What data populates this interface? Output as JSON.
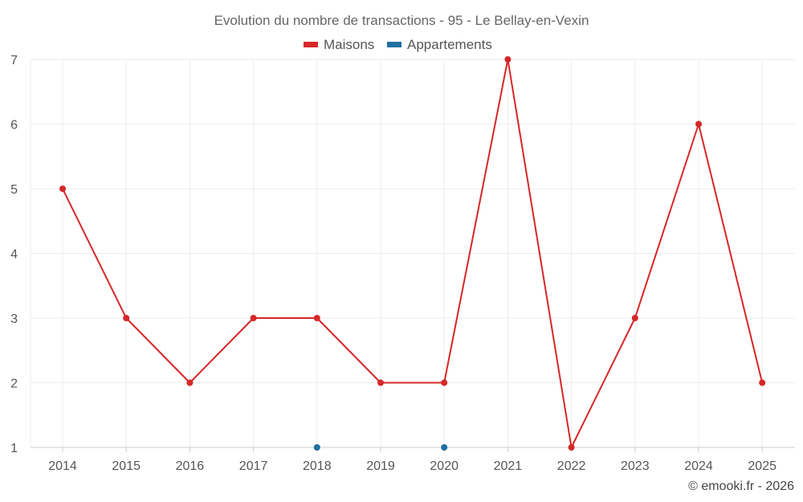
{
  "chart_data": {
    "type": "line",
    "title": "Evolution du nombre de transactions - 95 - Le Bellay-en-Vexin",
    "x": [
      "2014",
      "2015",
      "2016",
      "2017",
      "2018",
      "2019",
      "2020",
      "2021",
      "2022",
      "2023",
      "2024",
      "2025"
    ],
    "series": [
      {
        "name": "Maisons",
        "color": "#d62728",
        "values": [
          5,
          3,
          2,
          3,
          3,
          2,
          2,
          7,
          1,
          3,
          6,
          2
        ]
      },
      {
        "name": "Appartements",
        "color": "#1f6fa3",
        "values": [
          null,
          null,
          null,
          null,
          1,
          null,
          1,
          null,
          null,
          null,
          null,
          null
        ]
      }
    ],
    "ylim": [
      1,
      7
    ],
    "yticks": [
      1,
      2,
      3,
      4,
      5,
      6,
      7
    ],
    "grid": true,
    "legend": "top-center"
  },
  "credit": "© emooki.fr - 2026"
}
